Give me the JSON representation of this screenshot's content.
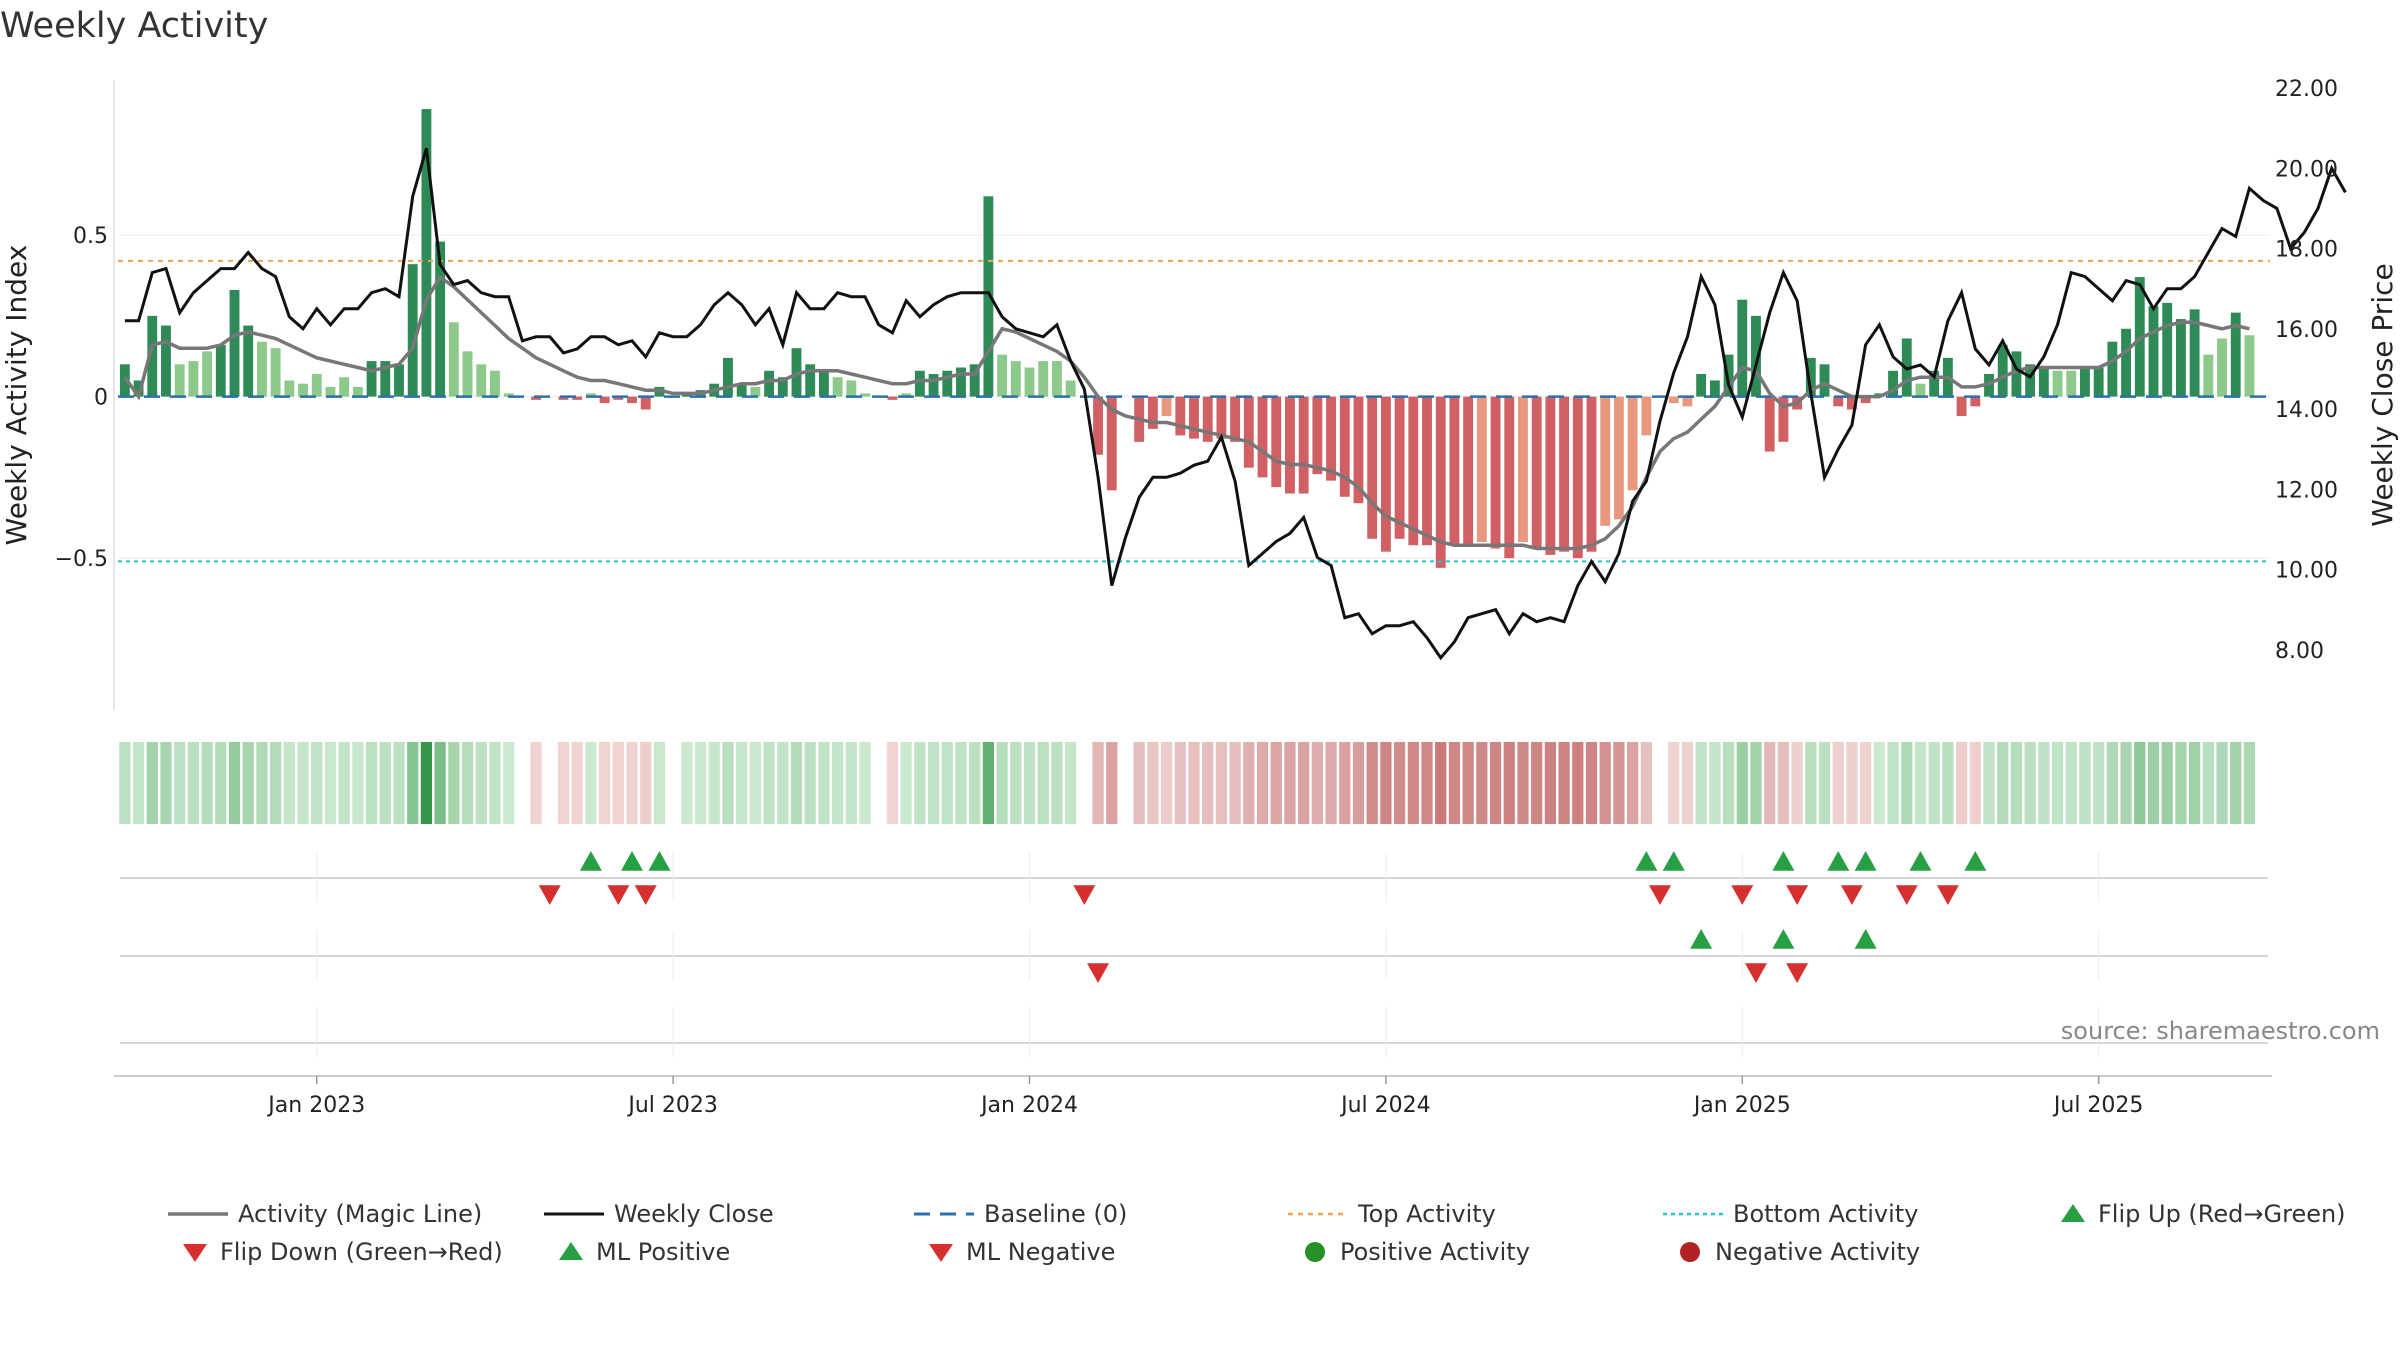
{
  "title": "Weekly Activity",
  "source_label": "source: sharemaestro.com",
  "colors": {
    "magic_line": "#777777",
    "close_line": "#111111",
    "baseline": "#2a6fb0",
    "top": "#f0a350",
    "bottom": "#22c2d6",
    "pos_dark": "#2e8b57",
    "pos_light": "#8cc98a",
    "neg_dark": "#d06064",
    "neg_light": "#e8987e",
    "flip_up": "#27a043",
    "flip_down": "#d62f2f"
  },
  "chart_data": {
    "type": "bar+line",
    "title": "Weekly Activity",
    "ylabel": "Weekly Activity Index",
    "y2label": "Weekly Close Price",
    "ylim": [
      -0.97,
      0.98
    ],
    "y2lim": [
      6.5,
      22.2
    ],
    "yticks": [
      {
        "v": 0.5,
        "label": "0.5"
      },
      {
        "v": 0,
        "label": "0"
      },
      {
        "v": -0.5,
        "label": "−0.5"
      }
    ],
    "y2ticks": [
      {
        "v": 22,
        "label": "22.00"
      },
      {
        "v": 20,
        "label": "20.00"
      },
      {
        "v": 18,
        "label": "18.00"
      },
      {
        "v": 16,
        "label": "16.00"
      },
      {
        "v": 14,
        "label": "14.00"
      },
      {
        "v": 12,
        "label": "12.00"
      },
      {
        "v": 10,
        "label": "10.00"
      },
      {
        "v": 8,
        "label": "8.00"
      }
    ],
    "xticks": [
      {
        "week": 14,
        "label": "Jan 2023"
      },
      {
        "week": 40,
        "label": "Jul 2023"
      },
      {
        "week": 66,
        "label": "Jan 2024"
      },
      {
        "week": 92,
        "label": "Jul 2024"
      },
      {
        "week": 118,
        "label": "Jan 2025"
      },
      {
        "week": 144,
        "label": "Jul 2025"
      }
    ],
    "n_weeks": 157,
    "top_activity": 0.42,
    "bottom_activity": -0.51,
    "activity": [
      0.1,
      0.05,
      0.25,
      0.22,
      0.1,
      0.11,
      0.14,
      0.16,
      0.33,
      0.22,
      0.17,
      0.15,
      0.05,
      0.04,
      0.07,
      0.03,
      0.06,
      0.03,
      0.11,
      0.11,
      0.1,
      0.41,
      0.89,
      0.48,
      0.23,
      0.14,
      0.1,
      0.08,
      0.01,
      0.0,
      -0.01,
      0.0,
      -0.01,
      -0.01,
      0.01,
      -0.02,
      -0.01,
      -0.02,
      -0.04,
      0.03,
      0.0,
      0.01,
      0.02,
      0.04,
      0.12,
      0.04,
      0.03,
      0.08,
      0.06,
      0.15,
      0.1,
      0.08,
      0.06,
      0.05,
      0.01,
      0.0,
      -0.01,
      0.01,
      0.08,
      0.07,
      0.08,
      0.09,
      0.1,
      0.62,
      0.13,
      0.11,
      0.09,
      0.11,
      0.11,
      0.05,
      0.0,
      -0.18,
      -0.29,
      0.0,
      -0.14,
      -0.1,
      -0.06,
      -0.12,
      -0.13,
      -0.14,
      -0.13,
      -0.14,
      -0.22,
      -0.25,
      -0.28,
      -0.3,
      -0.3,
      -0.24,
      -0.26,
      -0.31,
      -0.33,
      -0.44,
      -0.48,
      -0.44,
      -0.46,
      -0.46,
      -0.53,
      -0.46,
      -0.46,
      -0.45,
      -0.47,
      -0.5,
      -0.45,
      -0.47,
      -0.49,
      -0.48,
      -0.5,
      -0.48,
      -0.4,
      -0.38,
      -0.29,
      -0.12,
      0.0,
      -0.02,
      -0.03,
      0.07,
      0.05,
      0.13,
      0.3,
      0.25,
      -0.17,
      -0.14,
      -0.04,
      0.12,
      0.1,
      -0.03,
      -0.04,
      -0.02,
      0.01,
      0.08,
      0.18,
      0.04,
      0.08,
      0.12,
      -0.06,
      -0.03,
      0.07,
      0.16,
      0.14,
      0.1,
      0.09,
      0.08,
      0.08,
      0.09,
      0.09,
      0.17,
      0.21,
      0.37,
      0.28,
      0.29,
      0.24,
      0.27,
      0.13,
      0.18,
      0.26,
      0.19
    ],
    "magic_line": [
      0.06,
      0.0,
      0.16,
      0.17,
      0.15,
      0.15,
      0.15,
      0.16,
      0.19,
      0.2,
      0.19,
      0.18,
      0.16,
      0.14,
      0.12,
      0.11,
      0.1,
      0.09,
      0.08,
      0.09,
      0.1,
      0.15,
      0.3,
      0.37,
      0.34,
      0.3,
      0.26,
      0.22,
      0.18,
      0.15,
      0.12,
      0.1,
      0.08,
      0.06,
      0.05,
      0.05,
      0.04,
      0.03,
      0.02,
      0.02,
      0.01,
      0.01,
      0.01,
      0.02,
      0.03,
      0.04,
      0.04,
      0.05,
      0.05,
      0.07,
      0.08,
      0.08,
      0.08,
      0.07,
      0.06,
      0.05,
      0.04,
      0.04,
      0.05,
      0.05,
      0.06,
      0.07,
      0.07,
      0.14,
      0.21,
      0.2,
      0.18,
      0.16,
      0.14,
      0.11,
      0.06,
      0.0,
      -0.04,
      -0.06,
      -0.07,
      -0.08,
      -0.08,
      -0.09,
      -0.1,
      -0.11,
      -0.12,
      -0.13,
      -0.14,
      -0.17,
      -0.2,
      -0.21,
      -0.21,
      -0.22,
      -0.23,
      -0.25,
      -0.28,
      -0.33,
      -0.37,
      -0.39,
      -0.41,
      -0.43,
      -0.45,
      -0.46,
      -0.46,
      -0.46,
      -0.46,
      -0.46,
      -0.46,
      -0.47,
      -0.47,
      -0.47,
      -0.47,
      -0.46,
      -0.44,
      -0.4,
      -0.34,
      -0.25,
      -0.17,
      -0.13,
      -0.11,
      -0.07,
      -0.03,
      0.03,
      0.09,
      0.08,
      0.01,
      -0.03,
      -0.02,
      0.02,
      0.04,
      0.02,
      0.0,
      0.0,
      0.0,
      0.02,
      0.05,
      0.06,
      0.06,
      0.06,
      0.03,
      0.03,
      0.04,
      0.06,
      0.08,
      0.09,
      0.09,
      0.09,
      0.09,
      0.09,
      0.09,
      0.11,
      0.14,
      0.18,
      0.2,
      0.22,
      0.23,
      0.23,
      0.22,
      0.21,
      0.22,
      0.21
    ],
    "weekly_close": [
      16.2,
      16.2,
      17.4,
      17.5,
      16.4,
      16.9,
      17.2,
      17.5,
      17.5,
      17.9,
      17.5,
      17.3,
      16.3,
      16.0,
      16.5,
      16.1,
      16.5,
      16.5,
      16.9,
      17.0,
      16.8,
      19.3,
      20.5,
      17.6,
      17.1,
      17.2,
      16.9,
      16.8,
      16.8,
      15.7,
      15.8,
      15.8,
      15.4,
      15.5,
      15.8,
      15.8,
      15.6,
      15.7,
      15.3,
      15.9,
      15.8,
      15.8,
      16.1,
      16.6,
      16.9,
      16.6,
      16.1,
      16.5,
      15.6,
      16.9,
      16.5,
      16.5,
      16.9,
      16.8,
      16.8,
      16.1,
      15.9,
      16.7,
      16.3,
      16.6,
      16.8,
      16.9,
      16.9,
      16.9,
      16.3,
      16.0,
      15.9,
      15.8,
      16.1,
      15.2,
      14.5,
      12.3,
      9.6,
      10.8,
      11.8,
      12.3,
      12.3,
      12.4,
      12.6,
      12.7,
      13.3,
      12.2,
      10.1,
      10.4,
      10.7,
      10.9,
      11.3,
      10.3,
      10.1,
      8.8,
      8.9,
      8.4,
      8.6,
      8.6,
      8.7,
      8.3,
      7.8,
      8.2,
      8.8,
      8.9,
      9.0,
      8.4,
      8.9,
      8.7,
      8.8,
      8.7,
      9.6,
      10.2,
      9.7,
      10.4,
      11.7,
      12.2,
      13.7,
      14.9,
      15.8,
      17.3,
      16.6,
      14.6,
      13.8,
      15.1,
      16.4,
      17.4,
      16.7,
      14.4,
      12.3,
      13.0,
      13.6,
      15.6,
      16.1,
      15.3,
      15.0,
      15.1,
      14.8,
      16.2,
      16.9,
      15.5,
      15.1,
      15.7,
      15.0,
      14.8,
      15.3,
      16.1,
      17.4,
      17.3,
      17.0,
      16.7,
      17.2,
      17.1,
      16.5,
      17.0,
      17.0,
      17.3,
      17.9,
      18.5,
      18.3,
      19.5,
      19.2,
      19.0,
      18.0,
      18.4,
      19.0,
      20.0,
      19.4
    ],
    "heatmap_strip": "weekly activity color band (same sign/intensity as bars)",
    "flip_up_weeks": [
      34,
      37,
      39,
      111,
      113,
      121,
      125,
      127,
      131,
      135
    ],
    "flip_down_weeks": [
      31,
      36,
      38,
      70,
      112,
      118,
      122,
      126,
      130,
      133
    ],
    "ml_positive_weeks": [
      115,
      121,
      127
    ],
    "ml_negative_weeks": [
      71,
      119,
      122
    ],
    "legend": [
      {
        "key": "magic",
        "label": "Activity (Magic Line)"
      },
      {
        "key": "close",
        "label": "Weekly Close"
      },
      {
        "key": "baseline",
        "label": "Baseline (0)"
      },
      {
        "key": "top",
        "label": "Top Activity"
      },
      {
        "key": "bottom",
        "label": "Bottom Activity"
      },
      {
        "key": "flipup",
        "label": "Flip Up (Red→Green)"
      },
      {
        "key": "flipdown",
        "label": "Flip Down (Green→Red)"
      },
      {
        "key": "mlpos",
        "label": "ML Positive"
      },
      {
        "key": "mlneg",
        "label": "ML Negative"
      },
      {
        "key": "posact",
        "label": "Positive Activity"
      },
      {
        "key": "negact",
        "label": "Negative Activity"
      }
    ]
  }
}
